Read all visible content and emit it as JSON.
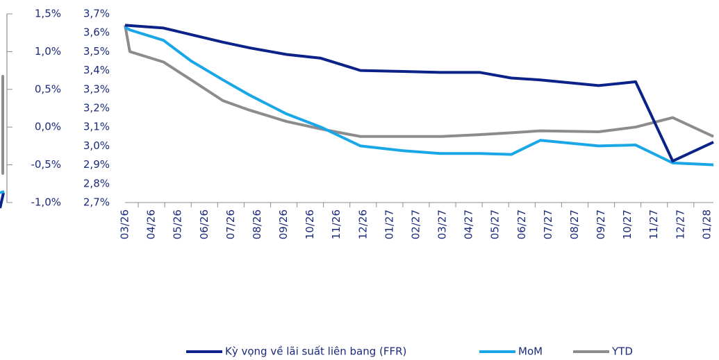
{
  "chart_data": {
    "type": "line",
    "x": [
      0,
      0.18,
      1.45,
      2.5,
      3.7,
      4.7,
      6.1,
      7.4,
      8.9,
      10.5,
      11.9,
      13.4,
      14.6,
      15.7,
      17.9,
      19.3,
      20.7,
      22.24
    ],
    "series": [
      {
        "name": "Kỳ vọng về lãi suất liên bang (FFR)",
        "color": "#0b2288",
        "values": [
          3.64,
          3.638,
          3.625,
          3.59,
          3.55,
          3.52,
          3.485,
          3.465,
          3.4,
          3.395,
          3.39,
          3.39,
          3.36,
          3.35,
          3.32,
          3.34,
          2.92,
          3.02
        ]
      },
      {
        "name": "MoM",
        "color": "#1aa7e8",
        "values": [
          3.63,
          3.615,
          3.56,
          3.45,
          3.35,
          3.27,
          3.17,
          3.1,
          3.0,
          2.975,
          2.96,
          2.96,
          2.955,
          3.03,
          3.0,
          3.005,
          2.91,
          2.9
        ]
      },
      {
        "name": "YTD",
        "color": "#8c8c8c",
        "values": [
          3.64,
          3.5,
          3.445,
          3.35,
          3.24,
          3.19,
          3.13,
          3.09,
          3.05,
          3.05,
          3.05,
          3.06,
          3.07,
          3.08,
          3.075,
          3.1,
          3.15,
          3.05
        ]
      }
    ],
    "xlim": [
      0,
      22.24
    ],
    "xticks": [
      {
        "value": 0,
        "label": "03/26"
      },
      {
        "value": 1,
        "label": "04/26"
      },
      {
        "value": 2,
        "label": "05/26"
      },
      {
        "value": 3,
        "label": "06/26"
      },
      {
        "value": 4,
        "label": "07/26"
      },
      {
        "value": 5,
        "label": "08/26"
      },
      {
        "value": 6,
        "label": "09/26"
      },
      {
        "value": 7,
        "label": "10/26"
      },
      {
        "value": 8,
        "label": "11/26"
      },
      {
        "value": 9,
        "label": "12/26"
      },
      {
        "value": 10,
        "label": "01/27"
      },
      {
        "value": 11,
        "label": "02/27"
      },
      {
        "value": 12,
        "label": "03/27"
      },
      {
        "value": 13,
        "label": "04/27"
      },
      {
        "value": 14,
        "label": "05/27"
      },
      {
        "value": 15,
        "label": "06/27"
      },
      {
        "value": 16,
        "label": "07/27"
      },
      {
        "value": 17,
        "label": "08/27"
      },
      {
        "value": 18,
        "label": "09/27"
      },
      {
        "value": 19,
        "label": "10/27"
      },
      {
        "value": 20,
        "label": "11/27"
      },
      {
        "value": 21,
        "label": "12/27"
      },
      {
        "value": 22,
        "label": "01/28"
      }
    ],
    "ylim": [
      2.7,
      3.7
    ],
    "yticks": [
      {
        "value": 3.7,
        "label": "3,7%"
      },
      {
        "value": 3.6,
        "label": "3,6%"
      },
      {
        "value": 3.5,
        "label": "3,5%"
      },
      {
        "value": 3.4,
        "label": "3,4%"
      },
      {
        "value": 3.3,
        "label": "3,3%"
      },
      {
        "value": 3.2,
        "label": "3,2%"
      },
      {
        "value": 3.1,
        "label": "3,1%"
      },
      {
        "value": 3.0,
        "label": "3,0%"
      },
      {
        "value": 2.9,
        "label": "2,9%"
      },
      {
        "value": 2.8,
        "label": "2,8%"
      },
      {
        "value": 2.7,
        "label": "2,7%"
      }
    ],
    "y2lim": [
      -1.0,
      1.5
    ],
    "y2ticks": [
      {
        "value": 1.5,
        "label": "1,5%"
      },
      {
        "value": 1.0,
        "label": "1,0%"
      },
      {
        "value": 0.5,
        "label": "0,5%"
      },
      {
        "value": 0.0,
        "label": "0,0%"
      },
      {
        "value": -0.5,
        "label": "-0,5%"
      },
      {
        "value": -1.0,
        "label": "-1,0%"
      }
    ],
    "legend": "bottom"
  }
}
